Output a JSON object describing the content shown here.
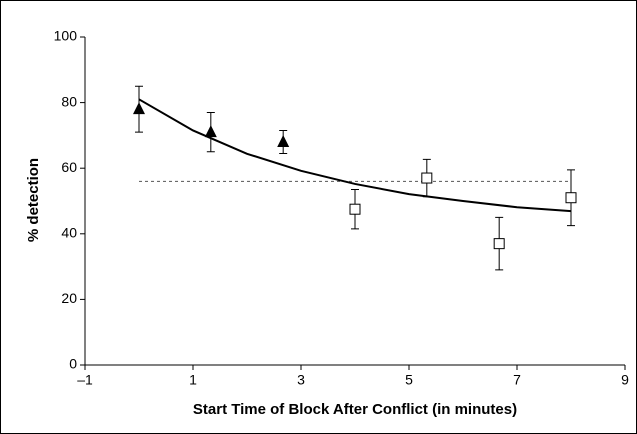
{
  "chart_data": {
    "type": "scatter",
    "x_label": "Start Time of Block After Conflict (in minutes)",
    "y_label": "% detection",
    "xlim": [
      -1,
      9
    ],
    "ylim": [
      0,
      100
    ],
    "xticks": [
      {
        "value": -1,
        "label": "–1"
      },
      1,
      3,
      5,
      7,
      9
    ],
    "yticks": [
      0,
      20,
      40,
      60,
      80,
      100
    ],
    "grid": false,
    "series": [
      {
        "marker": "triangle",
        "color": "#000000",
        "x": [
          0,
          1.33,
          2.67
        ],
        "values": [
          78,
          71,
          68
        ],
        "errors": [
          7,
          6,
          3.5
        ]
      },
      {
        "marker": "square",
        "color": "#000000",
        "x": [
          4,
          5.33,
          6.67,
          8
        ],
        "values": [
          47.5,
          57,
          37,
          51
        ],
        "errors": [
          6,
          5.7,
          8,
          8.5
        ]
      }
    ],
    "fit": {
      "color": "#000000",
      "x": [
        0,
        1,
        2,
        3,
        4,
        5,
        6,
        7,
        8
      ],
      "values": [
        81,
        71.5,
        64.4,
        59.2,
        55.2,
        52.1,
        50,
        48.1,
        46.9
      ]
    },
    "reference_line": {
      "color": "#555555",
      "x": [
        0,
        8
      ],
      "value": 56
    }
  }
}
